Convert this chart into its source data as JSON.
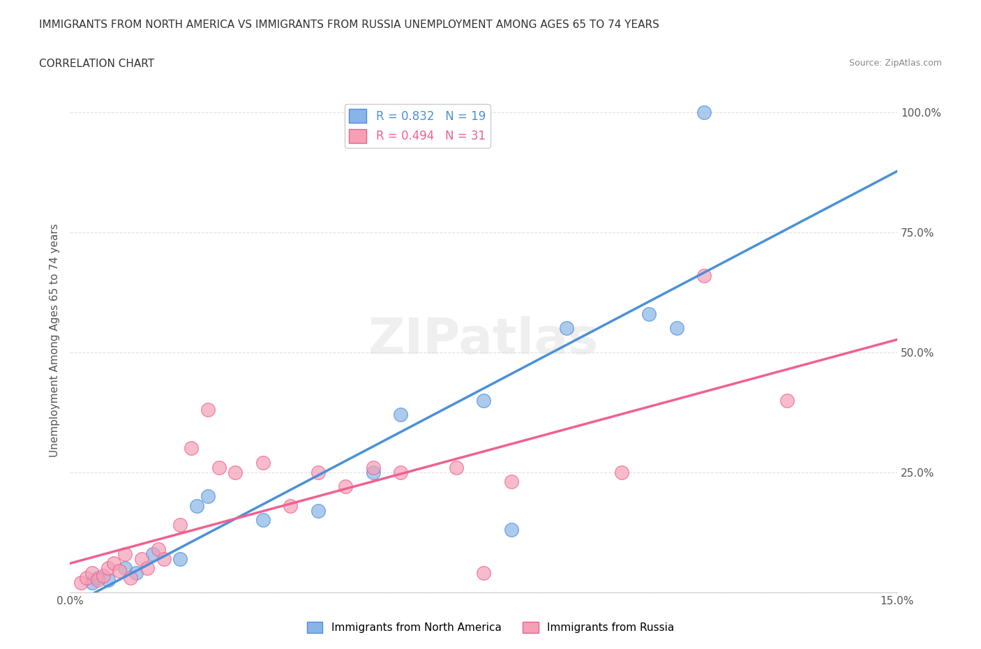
{
  "title": "IMMIGRANTS FROM NORTH AMERICA VS IMMIGRANTS FROM RUSSIA UNEMPLOYMENT AMONG AGES 65 TO 74 YEARS",
  "subtitle": "CORRELATION CHART",
  "source": "Source: ZipAtlas.com",
  "xlabel": "",
  "ylabel": "Unemployment Among Ages 65 to 74 years",
  "xlim": [
    0.0,
    15.0
  ],
  "ylim": [
    0.0,
    105.0
  ],
  "x_ticks": [
    0.0,
    2.5,
    5.0,
    7.5,
    10.0,
    12.5,
    15.0
  ],
  "x_tick_labels": [
    "0.0%",
    "",
    "",
    "",
    "",
    "",
    "15.0%"
  ],
  "y_ticks": [
    0.0,
    25.0,
    50.0,
    75.0,
    100.0
  ],
  "y_tick_labels": [
    "",
    "25.0%",
    "50.0%",
    "75.0%",
    "100.0%"
  ],
  "blue_label": "Immigrants from North America",
  "pink_label": "Immigrants from Russia",
  "blue_R": 0.832,
  "blue_N": 19,
  "pink_R": 0.494,
  "pink_N": 31,
  "blue_color": "#89b4e8",
  "pink_color": "#f4a0b5",
  "blue_line_color": "#4a90d9",
  "pink_line_color": "#f06090",
  "blue_scatter_x": [
    0.4,
    0.5,
    0.7,
    1.0,
    1.2,
    1.5,
    2.0,
    2.3,
    2.5,
    3.5,
    4.5,
    5.5,
    6.0,
    7.5,
    8.0,
    9.0,
    10.5,
    11.0,
    11.5
  ],
  "blue_scatter_y": [
    2.0,
    3.0,
    2.5,
    5.0,
    4.0,
    8.0,
    7.0,
    18.0,
    20.0,
    15.0,
    17.0,
    25.0,
    37.0,
    40.0,
    13.0,
    55.0,
    58.0,
    55.0,
    100.0
  ],
  "pink_scatter_x": [
    0.2,
    0.3,
    0.4,
    0.5,
    0.6,
    0.7,
    0.8,
    0.9,
    1.0,
    1.1,
    1.3,
    1.4,
    1.6,
    1.7,
    2.0,
    2.2,
    2.5,
    2.7,
    3.0,
    3.5,
    4.0,
    4.5,
    5.0,
    5.5,
    6.0,
    7.0,
    7.5,
    8.0,
    10.0,
    11.5,
    13.0
  ],
  "pink_scatter_y": [
    2.0,
    3.0,
    4.0,
    2.5,
    3.5,
    5.0,
    6.0,
    4.5,
    8.0,
    3.0,
    7.0,
    5.0,
    9.0,
    7.0,
    14.0,
    30.0,
    38.0,
    26.0,
    25.0,
    27.0,
    18.0,
    25.0,
    22.0,
    26.0,
    25.0,
    26.0,
    4.0,
    23.0,
    25.0,
    66.0,
    40.0
  ],
  "watermark": "ZIPatlas",
  "background_color": "#ffffff",
  "grid_color": "#e0e0e0"
}
